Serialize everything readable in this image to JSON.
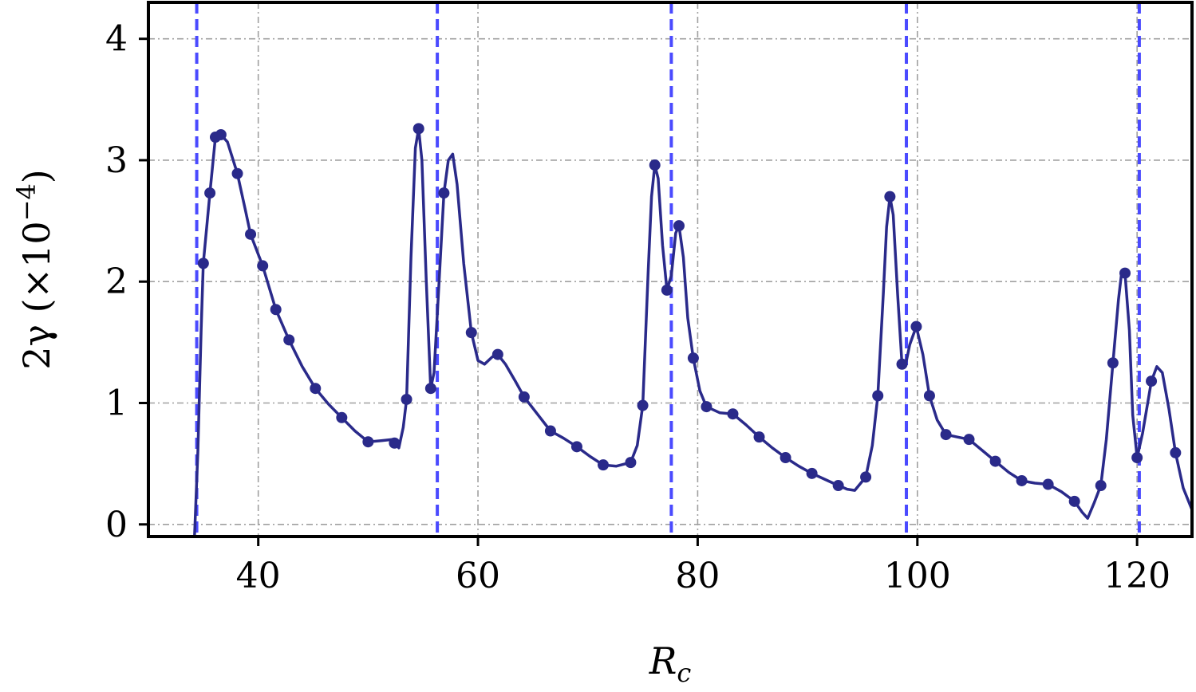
{
  "chart_data": {
    "type": "line",
    "xlabel": "R",
    "xlabel_sub": "c",
    "ylabel": "2γ (×10",
    "ylabel_exp": "−4",
    "ylabel_close": ")",
    "xlim": [
      30,
      125
    ],
    "ylim": [
      -0.1,
      4.3
    ],
    "xticks": [
      40,
      60,
      80,
      100,
      120
    ],
    "yticks": [
      0,
      1,
      2,
      3,
      4
    ],
    "grid": true,
    "colors": {
      "line": "#2a2a8a",
      "vline": "#4a4aff",
      "grid": "#a0a0a0"
    },
    "vlines": [
      34.4,
      56.3,
      77.6,
      99.0,
      120.2
    ],
    "series": [
      {
        "points": [
          [
            35.0,
            2.15
          ],
          [
            35.6,
            2.73
          ],
          [
            36.1,
            3.19
          ],
          [
            36.6,
            3.21
          ],
          [
            38.1,
            2.89
          ],
          [
            39.3,
            2.39
          ],
          [
            40.4,
            2.13
          ],
          [
            41.6,
            1.77
          ],
          [
            42.8,
            1.52
          ],
          [
            45.2,
            1.12
          ],
          [
            47.6,
            0.88
          ],
          [
            50.0,
            0.68
          ],
          [
            52.4,
            0.67
          ],
          [
            53.5,
            1.03
          ],
          [
            54.6,
            3.26
          ],
          [
            55.7,
            1.12
          ],
          [
            56.9,
            2.73
          ],
          [
            59.4,
            1.58
          ],
          [
            61.8,
            1.4
          ],
          [
            64.2,
            1.05
          ],
          [
            66.6,
            0.77
          ],
          [
            69.0,
            0.64
          ],
          [
            71.4,
            0.49
          ],
          [
            73.9,
            0.51
          ],
          [
            75.0,
            0.98
          ],
          [
            76.1,
            2.96
          ],
          [
            77.2,
            1.93
          ],
          [
            78.3,
            2.46
          ],
          [
            79.6,
            1.37
          ],
          [
            80.8,
            0.97
          ],
          [
            83.2,
            0.91
          ],
          [
            85.6,
            0.72
          ],
          [
            88.0,
            0.55
          ],
          [
            90.4,
            0.42
          ],
          [
            92.8,
            0.32
          ],
          [
            95.3,
            0.39
          ],
          [
            96.4,
            1.06
          ],
          [
            97.5,
            2.7
          ],
          [
            98.6,
            1.32
          ],
          [
            99.9,
            1.63
          ],
          [
            101.1,
            1.06
          ],
          [
            102.6,
            0.74
          ],
          [
            104.7,
            0.7
          ],
          [
            107.1,
            0.52
          ],
          [
            109.5,
            0.36
          ],
          [
            111.9,
            0.33
          ],
          [
            114.3,
            0.19
          ],
          [
            116.7,
            0.32
          ],
          [
            117.8,
            1.33
          ],
          [
            118.9,
            2.07
          ],
          [
            120.0,
            0.55
          ],
          [
            121.3,
            1.18
          ],
          [
            123.5,
            0.59
          ]
        ],
        "curve": [
          [
            34.2,
            -0.1
          ],
          [
            34.5,
            0.6
          ],
          [
            34.8,
            1.6
          ],
          [
            35.0,
            2.15
          ],
          [
            35.6,
            2.73
          ],
          [
            36.1,
            3.19
          ],
          [
            36.6,
            3.21
          ],
          [
            37.2,
            3.15
          ],
          [
            38.1,
            2.89
          ],
          [
            38.8,
            2.6
          ],
          [
            39.3,
            2.39
          ],
          [
            40.4,
            2.13
          ],
          [
            41.6,
            1.77
          ],
          [
            42.8,
            1.52
          ],
          [
            44.0,
            1.3
          ],
          [
            45.2,
            1.12
          ],
          [
            46.4,
            0.99
          ],
          [
            47.6,
            0.88
          ],
          [
            48.8,
            0.77
          ],
          [
            50.0,
            0.68
          ],
          [
            51.2,
            0.69
          ],
          [
            52.2,
            0.7
          ],
          [
            52.8,
            0.63
          ],
          [
            53.2,
            0.8
          ],
          [
            53.5,
            1.03
          ],
          [
            53.9,
            2.2
          ],
          [
            54.3,
            3.1
          ],
          [
            54.6,
            3.26
          ],
          [
            54.9,
            3.0
          ],
          [
            55.3,
            2.0
          ],
          [
            55.7,
            1.12
          ],
          [
            56.0,
            1.25
          ],
          [
            56.4,
            1.9
          ],
          [
            56.9,
            2.73
          ],
          [
            57.3,
            3.0
          ],
          [
            57.7,
            3.05
          ],
          [
            58.1,
            2.8
          ],
          [
            58.7,
            2.15
          ],
          [
            59.4,
            1.58
          ],
          [
            60.0,
            1.35
          ],
          [
            60.6,
            1.32
          ],
          [
            61.3,
            1.38
          ],
          [
            61.8,
            1.4
          ],
          [
            62.5,
            1.32
          ],
          [
            63.4,
            1.18
          ],
          [
            64.2,
            1.05
          ],
          [
            65.4,
            0.91
          ],
          [
            66.6,
            0.77
          ],
          [
            67.8,
            0.71
          ],
          [
            69.0,
            0.64
          ],
          [
            70.2,
            0.56
          ],
          [
            71.4,
            0.49
          ],
          [
            72.6,
            0.48
          ],
          [
            73.9,
            0.51
          ],
          [
            74.5,
            0.65
          ],
          [
            75.0,
            0.98
          ],
          [
            75.5,
            2.1
          ],
          [
            75.8,
            2.7
          ],
          [
            76.1,
            2.96
          ],
          [
            76.4,
            2.85
          ],
          [
            76.8,
            2.3
          ],
          [
            77.2,
            1.93
          ],
          [
            77.6,
            2.05
          ],
          [
            78.0,
            2.4
          ],
          [
            78.3,
            2.46
          ],
          [
            78.7,
            2.2
          ],
          [
            79.1,
            1.7
          ],
          [
            79.6,
            1.37
          ],
          [
            80.2,
            1.1
          ],
          [
            80.8,
            0.97
          ],
          [
            82.0,
            0.92
          ],
          [
            83.2,
            0.91
          ],
          [
            84.4,
            0.82
          ],
          [
            85.6,
            0.72
          ],
          [
            86.8,
            0.63
          ],
          [
            88.0,
            0.55
          ],
          [
            89.2,
            0.48
          ],
          [
            90.4,
            0.42
          ],
          [
            91.6,
            0.37
          ],
          [
            92.8,
            0.32
          ],
          [
            93.6,
            0.29
          ],
          [
            94.3,
            0.28
          ],
          [
            95.3,
            0.39
          ],
          [
            95.9,
            0.65
          ],
          [
            96.4,
            1.06
          ],
          [
            96.9,
            1.9
          ],
          [
            97.2,
            2.45
          ],
          [
            97.5,
            2.7
          ],
          [
            97.8,
            2.55
          ],
          [
            98.2,
            1.9
          ],
          [
            98.6,
            1.32
          ],
          [
            98.9,
            1.3
          ],
          [
            99.3,
            1.48
          ],
          [
            99.9,
            1.63
          ],
          [
            100.5,
            1.4
          ],
          [
            101.1,
            1.06
          ],
          [
            101.8,
            0.86
          ],
          [
            102.6,
            0.74
          ],
          [
            103.6,
            0.72
          ],
          [
            104.7,
            0.7
          ],
          [
            105.9,
            0.61
          ],
          [
            107.1,
            0.52
          ],
          [
            108.3,
            0.43
          ],
          [
            109.5,
            0.36
          ],
          [
            110.7,
            0.34
          ],
          [
            111.9,
            0.33
          ],
          [
            113.1,
            0.27
          ],
          [
            114.3,
            0.19
          ],
          [
            115.0,
            0.1
          ],
          [
            115.5,
            0.05
          ],
          [
            116.1,
            0.18
          ],
          [
            116.7,
            0.32
          ],
          [
            117.2,
            0.7
          ],
          [
            117.8,
            1.33
          ],
          [
            118.3,
            1.85
          ],
          [
            118.6,
            2.08
          ],
          [
            118.9,
            2.07
          ],
          [
            119.3,
            1.6
          ],
          [
            119.6,
            0.9
          ],
          [
            120.0,
            0.55
          ],
          [
            120.5,
            0.75
          ],
          [
            121.3,
            1.18
          ],
          [
            121.8,
            1.3
          ],
          [
            122.3,
            1.25
          ],
          [
            122.9,
            0.95
          ],
          [
            123.5,
            0.59
          ],
          [
            124.2,
            0.3
          ],
          [
            125.0,
            0.12
          ]
        ]
      }
    ]
  }
}
